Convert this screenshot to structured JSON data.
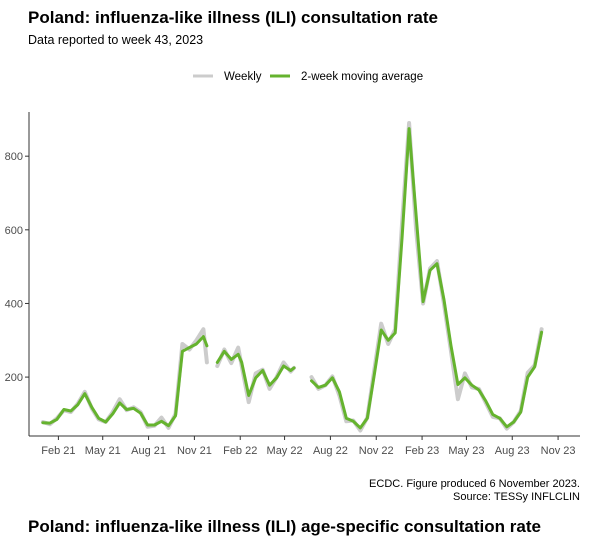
{
  "header": {
    "title": "Poland: influenza-like illness (ILI) consultation rate",
    "subtitle": "Data reported to week 43, 2023"
  },
  "caption": {
    "line1": "ECDC. Figure produced 6 November 2023.",
    "line2": "Source: TESSy INFLCLIN"
  },
  "next_section_title": "Poland: influenza-like illness (ILI) age-specific consultation rate",
  "colors": {
    "weekly": "#cccccc",
    "moving_average": "#65b32e",
    "axis": "#333333"
  },
  "chart_data": {
    "type": "line",
    "title": "Poland: influenza-like illness (ILI) consultation rate",
    "subtitle": "Data reported to week 43, 2023",
    "xlabel": "",
    "ylabel": "",
    "ylim": [
      40,
      920
    ],
    "y_ticks": [
      200,
      400,
      600,
      800
    ],
    "x_ticks": [
      "Feb 21",
      "May 21",
      "Aug 21",
      "Nov 21",
      "Feb 22",
      "May 22",
      "Aug 22",
      "Nov 22",
      "Feb 23",
      "May 23",
      "Aug 23",
      "Nov 23"
    ],
    "legend": {
      "position": "top",
      "entries": [
        "Weekly",
        "2-week moving average"
      ]
    },
    "grid": false,
    "series": [
      {
        "name": "Weekly",
        "segments": [
          [
            [
              "2021-01-01",
              78
            ],
            [
              "2021-01-15",
              72
            ],
            [
              "2021-01-29",
              88
            ],
            [
              "2021-02-12",
              110
            ],
            [
              "2021-02-26",
              105
            ],
            [
              "2021-03-12",
              128
            ],
            [
              "2021-03-26",
              160
            ],
            [
              "2021-04-09",
              115
            ],
            [
              "2021-04-23",
              85
            ],
            [
              "2021-05-07",
              78
            ],
            [
              "2021-05-21",
              105
            ],
            [
              "2021-06-04",
              140
            ],
            [
              "2021-06-18",
              110
            ],
            [
              "2021-07-02",
              118
            ],
            [
              "2021-07-16",
              105
            ],
            [
              "2021-07-30",
              65
            ],
            [
              "2021-08-13",
              68
            ],
            [
              "2021-08-27",
              90
            ],
            [
              "2021-09-10",
              62
            ],
            [
              "2021-09-24",
              100
            ],
            [
              "2021-10-08",
              290
            ],
            [
              "2021-10-22",
              275
            ],
            [
              "2021-11-05",
              300
            ],
            [
              "2021-11-19",
              330
            ],
            [
              "2021-11-26",
              240
            ]
          ],
          [
            [
              "2021-12-17",
              230
            ],
            [
              "2021-12-31",
              275
            ],
            [
              "2022-01-14",
              238
            ],
            [
              "2022-01-28",
              280
            ],
            [
              "2022-02-04",
              230
            ],
            [
              "2022-02-18",
              132
            ],
            [
              "2022-03-04",
              210
            ],
            [
              "2022-03-18",
              220
            ],
            [
              "2022-04-01",
              168
            ],
            [
              "2022-04-15",
              200
            ],
            [
              "2022-04-29",
              240
            ],
            [
              "2022-05-13",
              215
            ],
            [
              "2022-05-20",
              225
            ]
          ],
          [
            [
              "2022-06-24",
              200
            ],
            [
              "2022-07-08",
              168
            ],
            [
              "2022-07-22",
              178
            ],
            [
              "2022-08-05",
              202
            ],
            [
              "2022-08-19",
              150
            ],
            [
              "2022-09-02",
              80
            ],
            [
              "2022-09-16",
              82
            ],
            [
              "2022-09-30",
              55
            ],
            [
              "2022-10-14",
              90
            ],
            [
              "2022-10-28",
              218
            ],
            [
              "2022-11-11",
              345
            ],
            [
              "2022-11-25",
              290
            ],
            [
              "2022-12-09",
              330
            ],
            [
              "2022-12-23",
              620
            ],
            [
              "2023-01-06",
              890
            ],
            [
              "2023-01-20",
              600
            ],
            [
              "2023-02-03",
              400
            ],
            [
              "2023-02-17",
              495
            ],
            [
              "2023-03-03",
              515
            ],
            [
              "2023-03-17",
              398
            ],
            [
              "2023-03-31",
              270
            ],
            [
              "2023-04-14",
              140
            ],
            [
              "2023-04-28",
              210
            ],
            [
              "2023-05-12",
              172
            ],
            [
              "2023-05-26",
              168
            ],
            [
              "2023-06-09",
              130
            ],
            [
              "2023-06-23",
              92
            ],
            [
              "2023-07-07",
              88
            ],
            [
              "2023-07-21",
              60
            ],
            [
              "2023-08-04",
              78
            ],
            [
              "2023-08-18",
              108
            ],
            [
              "2023-09-01",
              212
            ],
            [
              "2023-09-15",
              232
            ],
            [
              "2023-09-29",
              330
            ]
          ]
        ]
      },
      {
        "name": "2-week moving average",
        "segments": [
          [
            [
              "2021-01-01",
              76
            ],
            [
              "2021-01-15",
              75
            ],
            [
              "2021-01-29",
              85
            ],
            [
              "2021-02-12",
              112
            ],
            [
              "2021-02-26",
              108
            ],
            [
              "2021-03-12",
              125
            ],
            [
              "2021-03-26",
              155
            ],
            [
              "2021-04-09",
              118
            ],
            [
              "2021-04-23",
              88
            ],
            [
              "2021-05-07",
              78
            ],
            [
              "2021-05-21",
              100
            ],
            [
              "2021-06-04",
              130
            ],
            [
              "2021-06-18",
              112
            ],
            [
              "2021-07-02",
              115
            ],
            [
              "2021-07-16",
              102
            ],
            [
              "2021-07-30",
              70
            ],
            [
              "2021-08-13",
              70
            ],
            [
              "2021-08-27",
              80
            ],
            [
              "2021-09-10",
              68
            ],
            [
              "2021-09-24",
              95
            ],
            [
              "2021-10-08",
              270
            ],
            [
              "2021-10-22",
              280
            ],
            [
              "2021-11-05",
              290
            ],
            [
              "2021-11-19",
              310
            ],
            [
              "2021-11-26",
              285
            ]
          ],
          [
            [
              "2021-12-17",
              240
            ],
            [
              "2021-12-31",
              270
            ],
            [
              "2022-01-14",
              248
            ],
            [
              "2022-01-28",
              262
            ],
            [
              "2022-02-04",
              240
            ],
            [
              "2022-02-18",
              150
            ],
            [
              "2022-03-04",
              198
            ],
            [
              "2022-03-18",
              218
            ],
            [
              "2022-04-01",
              178
            ],
            [
              "2022-04-15",
              198
            ],
            [
              "2022-04-29",
              230
            ],
            [
              "2022-05-13",
              218
            ],
            [
              "2022-05-20",
              225
            ]
          ],
          [
            [
              "2022-06-24",
              190
            ],
            [
              "2022-07-08",
              172
            ],
            [
              "2022-07-22",
              178
            ],
            [
              "2022-08-05",
              198
            ],
            [
              "2022-08-19",
              160
            ],
            [
              "2022-09-02",
              88
            ],
            [
              "2022-09-16",
              80
            ],
            [
              "2022-09-30",
              62
            ],
            [
              "2022-10-14",
              88
            ],
            [
              "2022-10-28",
              205
            ],
            [
              "2022-11-11",
              328
            ],
            [
              "2022-11-25",
              300
            ],
            [
              "2022-12-09",
              320
            ],
            [
              "2022-12-23",
              580
            ],
            [
              "2023-01-06",
              875
            ],
            [
              "2023-01-20",
              640
            ],
            [
              "2023-02-03",
              405
            ],
            [
              "2023-02-17",
              490
            ],
            [
              "2023-03-03",
              508
            ],
            [
              "2023-03-17",
              410
            ],
            [
              "2023-03-31",
              285
            ],
            [
              "2023-04-14",
              180
            ],
            [
              "2023-04-28",
              198
            ],
            [
              "2023-05-12",
              178
            ],
            [
              "2023-05-26",
              165
            ],
            [
              "2023-06-09",
              135
            ],
            [
              "2023-06-23",
              98
            ],
            [
              "2023-07-07",
              88
            ],
            [
              "2023-07-21",
              65
            ],
            [
              "2023-08-04",
              78
            ],
            [
              "2023-08-18",
              105
            ],
            [
              "2023-09-01",
              200
            ],
            [
              "2023-09-15",
              228
            ],
            [
              "2023-09-29",
              322
            ]
          ]
        ]
      }
    ]
  }
}
